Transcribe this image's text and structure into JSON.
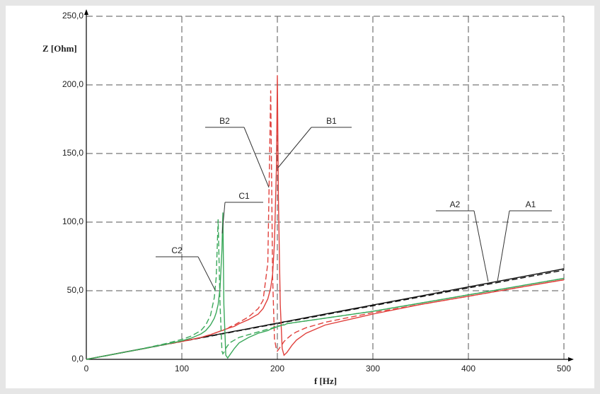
{
  "chart_data": {
    "type": "line",
    "y_label": "Z [Ohm]",
    "x_label": "f [Hz]",
    "x": [
      0,
      20,
      40,
      60,
      80,
      100,
      110,
      120,
      125,
      130,
      134,
      136,
      138,
      140,
      142,
      143,
      144,
      146,
      148,
      150,
      155,
      160,
      170,
      180,
      185,
      190,
      193,
      195,
      197,
      199,
      200,
      201,
      203,
      205,
      207,
      210,
      215,
      220,
      230,
      250,
      300,
      350,
      400,
      450,
      500
    ],
    "series": [
      {
        "name": "A1",
        "color": "#111111",
        "dashed": false,
        "values": [
          0,
          2.6,
          5.3,
          7.9,
          10.6,
          13.2,
          14.5,
          15.8,
          16.5,
          17.2,
          17.7,
          18,
          18.2,
          18.5,
          18.7,
          18.9,
          19,
          19.3,
          19.5,
          19.8,
          20.5,
          21.1,
          22.4,
          23.8,
          24.4,
          25.1,
          25.5,
          25.7,
          26,
          26.3,
          26.4,
          26.5,
          26.8,
          27.1,
          27.3,
          27.7,
          28.4,
          29,
          30.4,
          33,
          39.6,
          46.2,
          52.8,
          59.4,
          66
        ]
      },
      {
        "name": "A2",
        "color": "#111111",
        "dashed": true,
        "values": [
          0,
          2.6,
          5.2,
          7.8,
          10.4,
          13,
          14.3,
          15.6,
          16.3,
          16.9,
          17.4,
          17.7,
          17.9,
          18.2,
          18.5,
          18.6,
          18.7,
          19,
          19.2,
          19.5,
          20.2,
          20.8,
          22.1,
          23.4,
          24.1,
          24.7,
          25.1,
          25.4,
          25.6,
          25.9,
          26,
          26.1,
          26.4,
          26.7,
          26.9,
          27.3,
          28,
          28.6,
          29.9,
          32.5,
          39,
          45.5,
          52,
          58.5,
          65
        ]
      },
      {
        "name": "B1",
        "color": "#e0403c",
        "dashed": false,
        "values": [
          0,
          2.6,
          5.2,
          7.8,
          10.5,
          13,
          14.5,
          16,
          17,
          18,
          19,
          19.5,
          20,
          20.5,
          21,
          21,
          21.5,
          22,
          22.5,
          23,
          24,
          26,
          29,
          33,
          37,
          44,
          52,
          62,
          85,
          140,
          207,
          120,
          40,
          8,
          3,
          5,
          10,
          14,
          19,
          25,
          33,
          40,
          46,
          52,
          58
        ]
      },
      {
        "name": "B2",
        "color": "#e0403c",
        "dashed": true,
        "values": [
          0,
          2.6,
          5.2,
          7.8,
          10.5,
          13,
          14.5,
          16,
          17,
          18,
          19,
          19.5,
          20,
          20.5,
          21,
          21,
          21.5,
          22,
          22.5,
          23.5,
          25,
          27,
          31,
          37,
          43,
          70,
          196,
          60,
          15,
          7,
          6,
          7,
          9,
          11,
          13,
          15,
          18,
          20,
          23,
          27,
          34,
          40,
          46,
          52,
          58
        ]
      },
      {
        "name": "C1",
        "color": "#3aa85a",
        "dashed": false,
        "values": [
          0,
          2.6,
          5.2,
          7.8,
          10.5,
          13.5,
          15.5,
          18.5,
          21,
          25,
          30,
          34,
          40,
          52,
          80,
          107,
          40,
          3,
          1,
          3,
          8,
          12,
          16,
          19,
          20,
          21,
          22,
          22.5,
          23,
          23.5,
          24,
          24,
          24.5,
          25,
          25,
          26,
          26.5,
          27,
          28,
          30,
          35,
          41,
          47,
          53,
          59
        ]
      },
      {
        "name": "C2",
        "color": "#3aa85a",
        "dashed": true,
        "values": [
          0,
          2.6,
          5.2,
          8,
          11,
          14.5,
          17,
          21,
          25,
          32,
          45,
          60,
          102,
          40,
          6,
          4,
          5,
          8,
          10,
          12,
          14,
          16,
          18,
          20,
          21,
          22,
          22.5,
          23,
          23.5,
          24,
          24,
          24.5,
          24.5,
          25,
          25.5,
          26,
          26.5,
          27,
          28,
          30,
          35,
          41,
          47,
          53,
          59
        ]
      }
    ],
    "xlim": [
      0,
      500
    ],
    "xticks": [
      0,
      100,
      200,
      300,
      400,
      500
    ],
    "ylim": [
      0,
      250
    ],
    "yticks": [
      {
        "value": 0,
        "label": "0,0"
      },
      {
        "value": 50,
        "label": "50,0"
      },
      {
        "value": 100,
        "label": "100,0"
      },
      {
        "value": 150,
        "label": "150,0"
      },
      {
        "value": 200,
        "label": "200,0"
      },
      {
        "value": 250,
        "label": "250,0"
      }
    ],
    "grid": true
  }
}
